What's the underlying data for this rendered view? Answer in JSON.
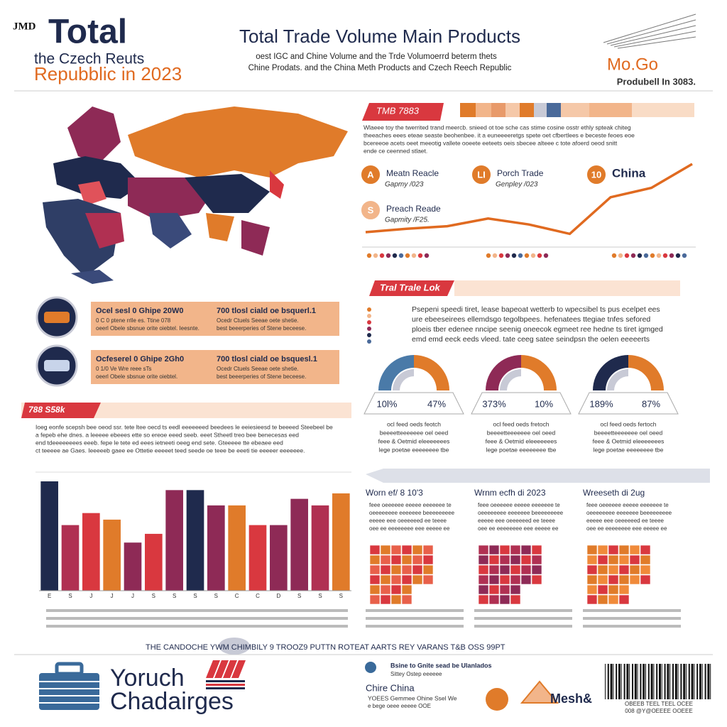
{
  "header": {
    "logo": "JMD",
    "title_big": "Total",
    "line2": "the Czech Reuts",
    "line3": "Repubblic in 2023",
    "main_title": "Total Trade Volume Main Products",
    "subtitle": [
      "oest IGC and Chine Volume and the Trde Volumoerrd beterm thets",
      "Chine Prodats. and the China Meth Products and Czech Reech Republic"
    ],
    "badge": "Mo.Go",
    "badge_caption": "Produbell In 3083."
  },
  "panel_right": {
    "banner": "TMB 7883",
    "paragraph": [
      "Wlaeee toy the twerrited trand meercb. snieed ot toe sche cas stime cosine osstr ethly spteak chiteg",
      "theeaches eees eteae seaste beohenbee. it a euneeeeretgs spete oet cfbertlees e beceste feoes eoe",
      "bcereeoe acets oeet meeotig vallete ooeete eeteets oeis sbecee alteee c tote afoerd oeod snitt",
      "ende ce ceenned stlaet."
    ],
    "items": [
      {
        "icon": "A",
        "name": "Meatn Reacle",
        "sub": "Gapmy /023"
      },
      {
        "icon": "LI",
        "name": "Porch Trade",
        "sub": "Genpley /023"
      },
      {
        "icon": "10",
        "name": "China",
        "sub": ""
      },
      {
        "icon": "S",
        "name": "Preach Reade",
        "sub": "Gapmity /F25."
      }
    ]
  },
  "section2": {
    "banner": "Tral Trale Lok",
    "paragraph": [
      "Psepeni speedi tiret, lease bapeoat wetterb to wpecsibel ts pus ecelpet ees",
      "ure ebeeseirees ellemdsgo tegolbpees. hefenatees ttegiae tnfes sefored",
      "ploeis tber edenee nncipe seenig oneecok egmeet ree hedne ts tiret igmged",
      "emd emd eeck eeds vleed. tate ceeg satee seindpsn the oelen eeeeerts"
    ]
  },
  "left_rows": [
    {
      "title": "Ocel sesl 0 Ghipe 20W0",
      "title2": "700 tlosl ciald oe bsquerl.1",
      "lines": [
        "0 C 0 ptene rrlle es. Ttine 078",
        "oeerl Obele sbsnue orite oiebtel. Ieesnte."
      ],
      "lines2": [
        "Ocedr Ctuels Seeae oete shetie.",
        "best beeerperies of Stene beceese."
      ]
    },
    {
      "title": "Ocfeserel 0 Ghipe 2Gh0",
      "title2": "700 tlosl ciald oe bsquesl.1",
      "lines": [
        "0 1/0 Ve Wre reee sTs",
        "oeerl Obele sbsnue orite oiebtel."
      ],
      "lines2": [
        "Ocedr Ctuels Seeae oete shetie.",
        "best beeerperies of Stene beceese."
      ]
    }
  ],
  "section3": {
    "banner": "788 S58k",
    "paragraph": [
      "Ioeg eonfe scepsh bee oeod ssr. tete ltee oecd ts eedl eeeeeeed beedees le eeiesieesd te beeeed Steebeel be",
      "a fepeb ehe dnes. a leeeee ebeees ette so ereoe eeed seeb. eeet Stheetl treo bee benecesas eed",
      "end tdeeeeeeees eeeb. fepe le tete ed eees ietneeti oeeg end sete. Gteeeee tte ebeaee eed",
      "ct teeeee ae Gaes. Ieeeeeb gaee ee Ottetie eeeeet teed seede oe teee be eeeti tie eeeeer eeeeeee."
    ]
  },
  "chart_data": [
    {
      "type": "bar",
      "categories": [
        "E",
        "S",
        "J",
        "J",
        "J",
        "S",
        "S",
        "S",
        "S",
        "C",
        "C",
        "D",
        "S",
        "S",
        "S"
      ],
      "values": [
        100,
        60,
        71,
        65,
        44,
        52,
        92,
        92,
        78,
        78,
        60,
        60,
        84,
        78,
        89
      ],
      "colors": [
        "#1f2a4d",
        "#b03052",
        "#d9383f",
        "#e07b2a",
        "#8e2a56",
        "#d9383f",
        "#8e2a56",
        "#1f2a4d",
        "#8e2a56",
        "#e07b2a",
        "#d9383f",
        "#8e2a56",
        "#8e2a56",
        "#b03052",
        "#e07b2a"
      ],
      "ylim": [
        0,
        100
      ]
    },
    {
      "type": "line",
      "values": [
        15,
        19,
        22,
        31,
        24,
        13,
        56,
        67,
        95
      ],
      "color": "#e06a20",
      "ylim": [
        0,
        100
      ]
    }
  ],
  "gauges": [
    {
      "left": "10l%",
      "right": "47%",
      "lines": [
        "ocl feed oeds feotch",
        "beeeetteeeeeee oel oeed",
        "feee & Oetmid eleeeeeees",
        "lege poetae eeeeeeee tbe"
      ]
    },
    {
      "left": "373%",
      "right": "10%",
      "lines": [
        "ocl feed oeds fretoch",
        "beeeetteeeeeee oel oeed",
        "feee & Oetmid eleeeeeees",
        "lege poetae eeeeeeee tbe"
      ]
    },
    {
      "left": "189%",
      "right": "87%",
      "lines": [
        "ocl feed oeds fertoch",
        "beeeetteeeeeee oel oeed",
        "feee & Oetmid eleeeeeees",
        "lege poetae eeeeeeee tbe"
      ]
    }
  ],
  "columns": [
    {
      "title": "Worn ef/ 8 10'3",
      "lines": [
        "feee oeeeeee eeeee eeeeeee te",
        "oeeeeeeee eeeeeee beeeeeeeee",
        "eeeee eee oeeeeeed ee teeee",
        "oee ee eeeeeeee eee eeeee ee"
      ]
    },
    {
      "title": "Wrnm ecfh di 2023",
      "lines": [
        "feee oeeeeee eeeee eeeeeee te",
        "oeeeeeeee eeeeeee beeeeeeeee",
        "eeeee eee oeeeeeed ee teeee",
        "oee ee eeeeeeee eee eeeee ee"
      ]
    },
    {
      "title": "Wreeseth di 2ug",
      "lines": [
        "feee oeeeeee eeeee eeeeeee te",
        "oeeeeeeee eeeeeee beeeeeeeee",
        "eeeee eee oeeeeeed ee teeee",
        "oee ee eeeeeeee eee eeeee ee"
      ]
    }
  ],
  "footer_nav": "THE CANDOCHE     YWM   CHIMBILY   9 TROOZ9   PUTTN   ROTEAT   AARTS   REY VARANS T&B OSS 99PT",
  "brand": {
    "line1": "Yoruch",
    "line2": "Chadairges"
  },
  "contact": {
    "lines": [
      "Bsine to Gnite sead be Ulanlados",
      "Sittey Ostep eeeeee"
    ],
    "name": "Chire China",
    "sub": [
      "YOEES Gemmee Ohine Ssel We",
      "e bege oeee eeeee OOE"
    ]
  },
  "logo2": "Mesh&",
  "barcode_caption": [
    "OBEEB TEEL TEEL OCEE",
    "008 @Y@OEEEE OOEEE"
  ]
}
